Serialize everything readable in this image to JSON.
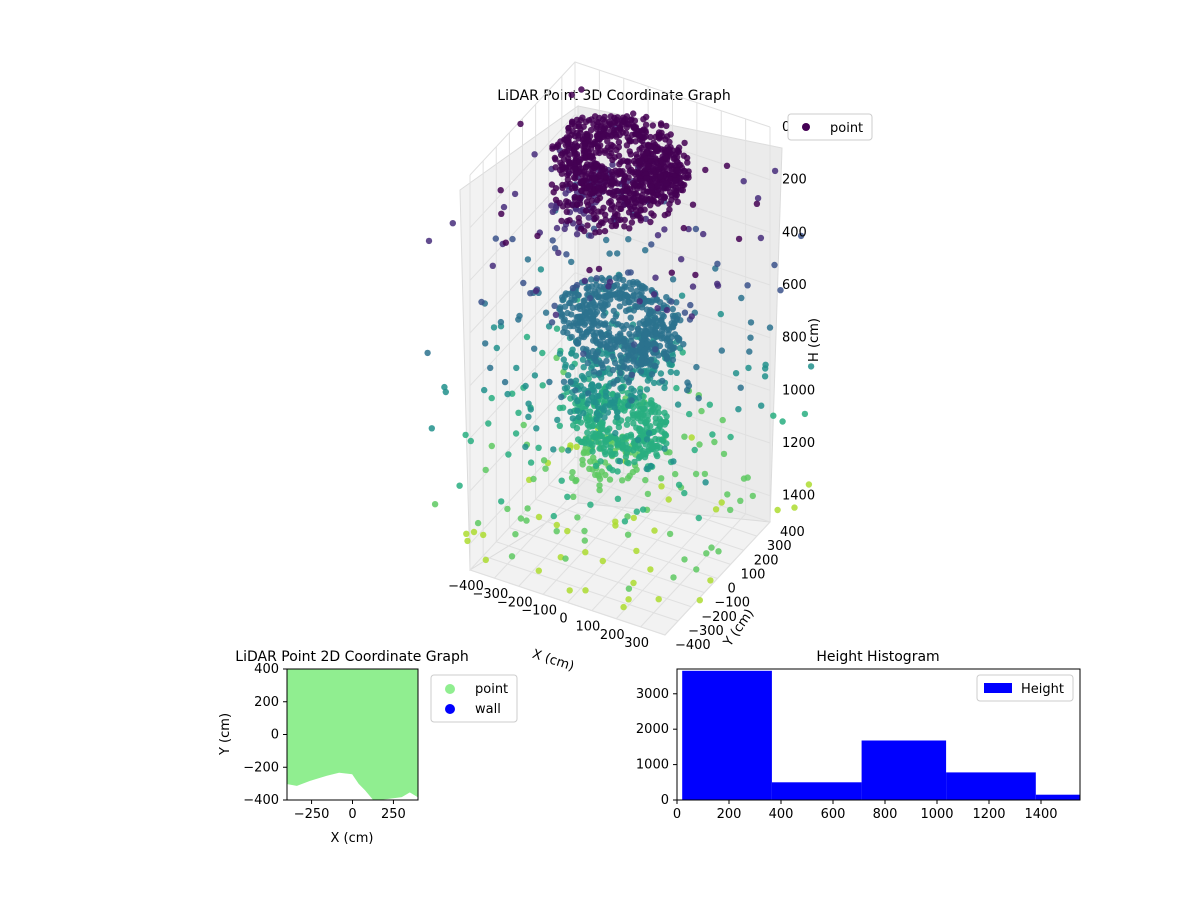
{
  "colors": {
    "point_3d_high": "#440154",
    "point_3d_mid": "#3b528b",
    "point_3d_low": "#21918c",
    "point_3d_light": "#5ec962",
    "point_2d": "#90ee90",
    "wall_2d": "#0000ff",
    "hist_bar": "#0000ff",
    "pane_gray": "#f2f2f2",
    "grid": "#e6e6e6"
  },
  "chart_data": [
    {
      "type": "scatter",
      "projection": "3d",
      "title": "LiDAR Point 3D Coordinate Graph",
      "xlabel": "X (cm)",
      "ylabel": "Y (cm)",
      "zlabel": "H (cm)",
      "xlim": [
        -400,
        400
      ],
      "ylim": [
        -400,
        400
      ],
      "zlim": [
        1500,
        0
      ],
      "z_inverted": true,
      "xticks": [
        "−400",
        "−300",
        "−200",
        "−100",
        "0",
        "100",
        "200",
        "300"
      ],
      "yticks": [
        "−400",
        "−300",
        "−200",
        "−100",
        "0",
        "100",
        "200",
        "300",
        "400"
      ],
      "zticks": [
        "0",
        "200",
        "400",
        "600",
        "800",
        "1000",
        "1200",
        "1400"
      ],
      "legend": [
        "point"
      ],
      "legend_position": "top-right",
      "colormap": "viridis (by height)",
      "grid": true,
      "series": [
        {
          "name": "point",
          "shape": "spiral point cloud, dense near top (H 0–200) and around H 800–1000, sparse scattered points lower down"
        }
      ]
    },
    {
      "type": "scatter",
      "title": "LiDAR Point 2D Coordinate Graph",
      "xlabel": "X (cm)",
      "ylabel": "Y (cm)",
      "xlim": [
        -400,
        400
      ],
      "ylim": [
        -400,
        400
      ],
      "xticks": [
        "−250",
        "0",
        "250"
      ],
      "yticks": [
        "400",
        "200",
        "0",
        "−200",
        "−400"
      ],
      "legend": [
        "point",
        "wall"
      ],
      "legend_position": "outside-right",
      "series": [
        {
          "name": "point",
          "color": "#90ee90",
          "fill_boundary_y": [
            {
              "x": -400,
              "y": -300
            },
            {
              "x": -340,
              "y": -310
            },
            {
              "x": -260,
              "y": -280
            },
            {
              "x": -160,
              "y": -250
            },
            {
              "x": -80,
              "y": -230
            },
            {
              "x": 0,
              "y": -240
            },
            {
              "x": 40,
              "y": -300
            },
            {
              "x": 80,
              "y": -340
            },
            {
              "x": 130,
              "y": -400
            },
            {
              "x": 220,
              "y": -390
            },
            {
              "x": 300,
              "y": -380
            },
            {
              "x": 350,
              "y": -350
            },
            {
              "x": 400,
              "y": -380
            }
          ]
        },
        {
          "name": "wall",
          "color": "#0000ff",
          "values": []
        }
      ]
    },
    {
      "type": "bar",
      "subtype": "histogram",
      "title": "Height Histogram",
      "legend": [
        "Height"
      ],
      "legend_position": "top-right",
      "xlim": [
        0,
        1550
      ],
      "ylim": [
        0,
        3700
      ],
      "xticks": [
        "0",
        "200",
        "400",
        "600",
        "800",
        "1000",
        "1200",
        "1400"
      ],
      "yticks": [
        "0",
        "1000",
        "2000",
        "3000"
      ],
      "bins": [
        {
          "x0": 20,
          "x1": 365,
          "count": 3650
        },
        {
          "x0": 365,
          "x1": 710,
          "count": 500
        },
        {
          "x0": 710,
          "x1": 1035,
          "count": 1680
        },
        {
          "x0": 1035,
          "x1": 1380,
          "count": 780
        },
        {
          "x0": 1380,
          "x1": 1550,
          "count": 150
        }
      ]
    }
  ]
}
